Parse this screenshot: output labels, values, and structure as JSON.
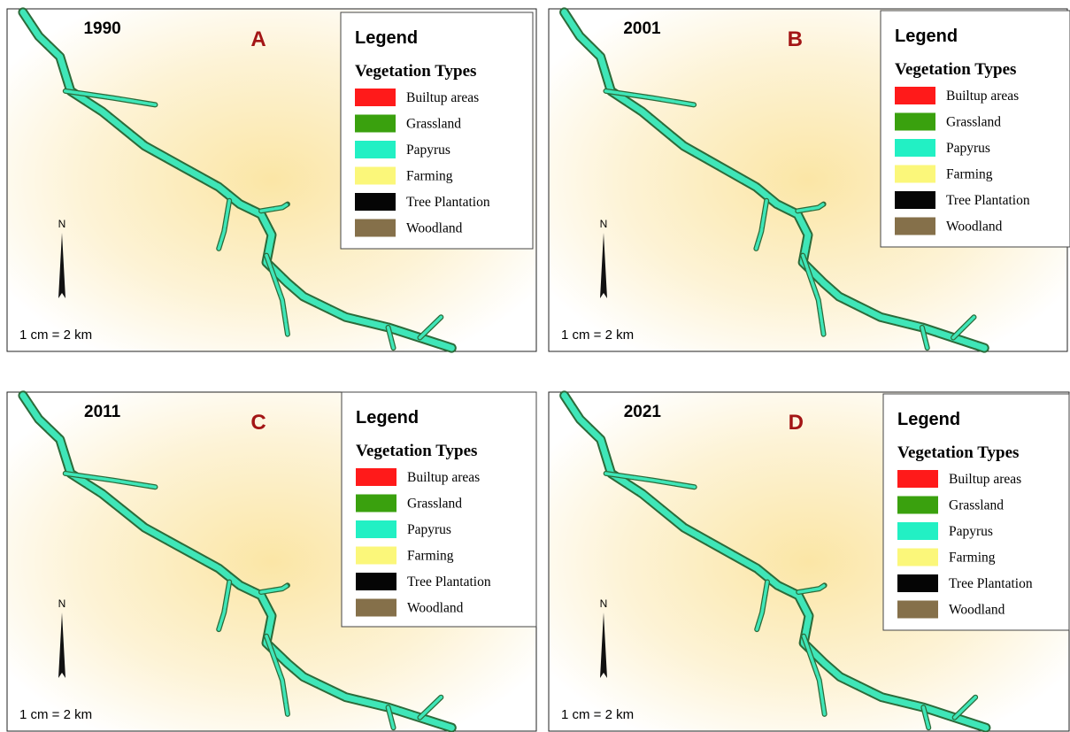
{
  "panels": [
    {
      "year": "1990",
      "letter": "A",
      "north": "N",
      "scale": "1 cm = 2 km",
      "legend": {
        "title": "Legend",
        "subtitle": "Vegetation Types",
        "items": [
          {
            "label": "Builtup areas",
            "color": "#ff1a1a"
          },
          {
            "label": "Grassland",
            "color": "#3aa10e"
          },
          {
            "label": "Papyrus",
            "color": "#22f0c4"
          },
          {
            "label": "Farming",
            "color": "#fbf77a"
          },
          {
            "label": "Tree Plantation",
            "color": "#050505"
          },
          {
            "label": "Woodland",
            "color": "#85704a"
          }
        ]
      }
    },
    {
      "year": "2001",
      "letter": "B",
      "north": "N",
      "scale": "1 cm = 2 km",
      "legend": {
        "title": "Legend",
        "subtitle": "Vegetation Types",
        "items": [
          {
            "label": "Builtup areas",
            "color": "#ff1a1a"
          },
          {
            "label": "Grassland",
            "color": "#3aa10e"
          },
          {
            "label": "Papyrus",
            "color": "#22f0c4"
          },
          {
            "label": "Farming",
            "color": "#fbf77a"
          },
          {
            "label": "Tree Plantation",
            "color": "#050505"
          },
          {
            "label": "Woodland",
            "color": "#85704a"
          }
        ]
      }
    },
    {
      "year": "2011",
      "letter": "C",
      "north": "N",
      "scale": "1 cm = 2 km",
      "legend": {
        "title": "Legend",
        "subtitle": "Vegetation Types",
        "items": [
          {
            "label": "Builtup areas",
            "color": "#ff1a1a"
          },
          {
            "label": "Grassland",
            "color": "#3aa10e"
          },
          {
            "label": "Papyrus",
            "color": "#22f0c4"
          },
          {
            "label": "Farming",
            "color": "#fbf77a"
          },
          {
            "label": "Tree Plantation",
            "color": "#050505"
          },
          {
            "label": "Woodland",
            "color": "#85704a"
          }
        ]
      }
    },
    {
      "year": "2021",
      "letter": "D",
      "north": "N",
      "scale": "1 cm = 2 km",
      "legend": {
        "title": "Legend",
        "subtitle": "Vegetation Types",
        "items": [
          {
            "label": "Builtup areas",
            "color": "#ff1a1a"
          },
          {
            "label": "Grassland",
            "color": "#3aa10e"
          },
          {
            "label": "Papyrus",
            "color": "#22f0c4"
          },
          {
            "label": "Farming",
            "color": "#fbf77a"
          },
          {
            "label": "Tree Plantation",
            "color": "#050505"
          },
          {
            "label": "Woodland",
            "color": "#85704a"
          }
        ]
      }
    }
  ]
}
